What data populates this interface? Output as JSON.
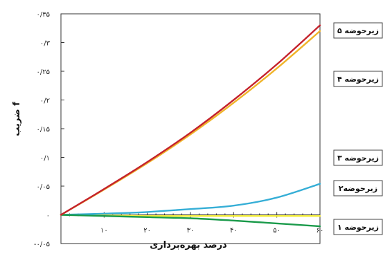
{
  "chart_data": {
    "type": "line",
    "xlabel": "درصد بهره‌برداری",
    "ylabel": "ضریب f",
    "xlim": [
      0,
      60
    ],
    "ylim": [
      -0.05,
      0.35
    ],
    "x_ticks": [
      {
        "value": 10,
        "label": "۱۰"
      },
      {
        "value": 20,
        "label": "۲۰"
      },
      {
        "value": 30,
        "label": "۳۰"
      },
      {
        "value": 40,
        "label": "۴۰"
      },
      {
        "value": 50,
        "label": "۵۰"
      },
      {
        "value": 60,
        "label": "۶۰"
      }
    ],
    "y_ticks": [
      {
        "value": -0.05,
        "label": "-۰/۰۵"
      },
      {
        "value": 0,
        "label": "۰"
      },
      {
        "value": 0.05,
        "label": "۰/۰۵"
      },
      {
        "value": 0.1,
        "label": "۰/۱"
      },
      {
        "value": 0.15,
        "label": "۰/۱۵"
      },
      {
        "value": 0.2,
        "label": "۰/۲"
      },
      {
        "value": 0.25,
        "label": "۰/۲۵"
      },
      {
        "value": 0.3,
        "label": "۰/۳"
      },
      {
        "value": 0.35,
        "label": "۰/۳۵"
      }
    ],
    "grid": false,
    "series": [
      {
        "name": "زیرحوضه ۵",
        "color": "#c4222c",
        "x": [
          0,
          10,
          20,
          30,
          40,
          50,
          60
        ],
        "y": [
          0,
          0.045,
          0.092,
          0.143,
          0.2,
          0.262,
          0.33
        ]
      },
      {
        "name": "زیرحوضه ۴",
        "color": "#f0b429",
        "x": [
          0,
          10,
          20,
          30,
          40,
          50,
          60
        ],
        "y": [
          0,
          0.044,
          0.09,
          0.14,
          0.195,
          0.255,
          0.32
        ]
      },
      {
        "name": "زیرحوضه ۳",
        "color": "#35aed6",
        "x": [
          0,
          10,
          20,
          30,
          40,
          50,
          60
        ],
        "y": [
          0,
          0.002,
          0.005,
          0.01,
          0.016,
          0.03,
          0.054
        ]
      },
      {
        "name": "زیرحوضه۲",
        "color": "#f4ee3c",
        "x": [
          0,
          10,
          20,
          30,
          40,
          50,
          60
        ],
        "y": [
          0,
          -0.001,
          -0.002,
          -0.002,
          -0.002,
          -0.002,
          -0.002
        ]
      },
      {
        "name": "زیرحوضه ۱",
        "color": "#1a9a4a",
        "x": [
          0,
          10,
          20,
          30,
          40,
          50,
          60
        ],
        "y": [
          0,
          -0.002,
          -0.004,
          -0.006,
          -0.01,
          -0.015,
          -0.02
        ]
      }
    ]
  }
}
